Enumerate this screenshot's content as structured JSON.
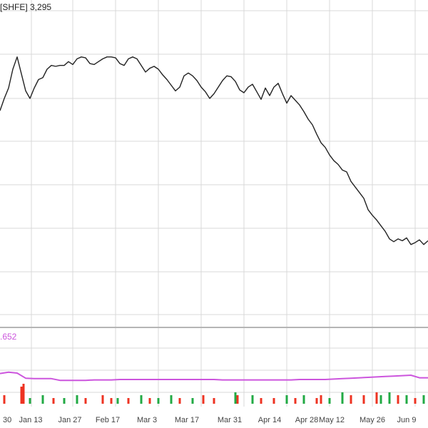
{
  "chart_data": {
    "type": "line",
    "price_title": "[SHFE] 3,295",
    "oi_label": ".652",
    "x_tick_labels": [
      "30",
      "Jan 13",
      "Jan 27",
      "Feb 17",
      "Mar 3",
      "Mar 17",
      "Mar 31",
      "Apr 14",
      "Apr 28",
      "May 12",
      "May 26",
      "Jun 9"
    ],
    "price_series": {
      "x": [
        0,
        2,
        4,
        6,
        8,
        10,
        12,
        14,
        16,
        18,
        20,
        22,
        24,
        26,
        28,
        30,
        32,
        34,
        36,
        38,
        40,
        42,
        44,
        46,
        48,
        50,
        52,
        54,
        56,
        58,
        60,
        62,
        64,
        66,
        68,
        70,
        72,
        74,
        76,
        78,
        80,
        82,
        84,
        86,
        88,
        90,
        92,
        94,
        96,
        98,
        100,
        102,
        104,
        106,
        108,
        110,
        112,
        114,
        116,
        118,
        120,
        122,
        124,
        126,
        128,
        130,
        132,
        134,
        136,
        138,
        140,
        142,
        144,
        146,
        148,
        150,
        152,
        154,
        156,
        158,
        160,
        162,
        164,
        166,
        168,
        170,
        172,
        174,
        176,
        178,
        180,
        182,
        184,
        186,
        188,
        190,
        192,
        194,
        196,
        198,
        200
      ],
      "values": [
        208,
        221,
        232,
        252,
        265,
        247,
        229,
        221,
        232,
        241,
        243,
        252,
        256,
        255,
        256,
        256,
        260,
        257,
        263,
        265,
        264,
        258,
        257,
        260,
        263,
        265,
        265,
        264,
        258,
        256,
        263,
        265,
        263,
        256,
        249,
        253,
        255,
        252,
        246,
        241,
        235,
        229,
        233,
        245,
        248,
        245,
        240,
        233,
        228,
        221,
        226,
        233,
        240,
        245,
        244,
        239,
        230,
        227,
        233,
        236,
        228,
        220,
        232,
        224,
        233,
        237,
        226,
        216,
        224,
        219,
        214,
        207,
        199,
        193,
        183,
        174,
        169,
        161,
        155,
        151,
        145,
        143,
        133,
        127,
        121,
        115,
        103,
        97,
        92,
        86,
        80,
        72,
        69,
        72,
        70,
        73,
        66,
        68,
        71,
        66,
        70
      ]
    },
    "oi_series": {
      "x": [
        0,
        4,
        8,
        12,
        16,
        20,
        24,
        28,
        32,
        36,
        40,
        44,
        48,
        52,
        56,
        60,
        64,
        68,
        72,
        76,
        80,
        84,
        88,
        92,
        96,
        100,
        104,
        108,
        112,
        116,
        120,
        124,
        128,
        132,
        136,
        140,
        144,
        148,
        152,
        156,
        160,
        164,
        168,
        172,
        176,
        180,
        184,
        188,
        192,
        196,
        200
      ],
      "values": [
        54,
        57,
        55,
        43,
        42,
        42,
        42,
        38,
        38,
        38,
        38,
        39,
        39,
        39,
        40,
        40,
        40,
        40,
        40,
        40,
        40,
        40,
        40,
        40,
        40,
        40,
        39,
        39,
        39,
        39,
        39,
        39,
        39,
        39,
        39,
        40,
        40,
        40,
        40,
        41,
        42,
        43,
        44,
        45,
        46,
        47,
        48,
        49,
        50,
        44,
        44
      ]
    },
    "volume_bars": [
      {
        "x": 2,
        "v": 3,
        "c": "red"
      },
      {
        "x": 10,
        "v": 6,
        "c": "red"
      },
      {
        "x": 11,
        "v": 7,
        "c": "red"
      },
      {
        "x": 14,
        "v": 2,
        "c": "green"
      },
      {
        "x": 20,
        "v": 3,
        "c": "green"
      },
      {
        "x": 25,
        "v": 2,
        "c": "red"
      },
      {
        "x": 30,
        "v": 2,
        "c": "green"
      },
      {
        "x": 36,
        "v": 3,
        "c": "green"
      },
      {
        "x": 40,
        "v": 2,
        "c": "red"
      },
      {
        "x": 48,
        "v": 3,
        "c": "red"
      },
      {
        "x": 52,
        "v": 2,
        "c": "red"
      },
      {
        "x": 55,
        "v": 2,
        "c": "green"
      },
      {
        "x": 60,
        "v": 2,
        "c": "red"
      },
      {
        "x": 66,
        "v": 3,
        "c": "green"
      },
      {
        "x": 70,
        "v": 2,
        "c": "red"
      },
      {
        "x": 74,
        "v": 2,
        "c": "green"
      },
      {
        "x": 80,
        "v": 3,
        "c": "green"
      },
      {
        "x": 84,
        "v": 2,
        "c": "red"
      },
      {
        "x": 90,
        "v": 2,
        "c": "green"
      },
      {
        "x": 95,
        "v": 3,
        "c": "red"
      },
      {
        "x": 100,
        "v": 2,
        "c": "red"
      },
      {
        "x": 110,
        "v": 4,
        "c": "green"
      },
      {
        "x": 111,
        "v": 3,
        "c": "red"
      },
      {
        "x": 118,
        "v": 3,
        "c": "green"
      },
      {
        "x": 122,
        "v": 2,
        "c": "red"
      },
      {
        "x": 128,
        "v": 2,
        "c": "red"
      },
      {
        "x": 134,
        "v": 3,
        "c": "green"
      },
      {
        "x": 138,
        "v": 2,
        "c": "red"
      },
      {
        "x": 142,
        "v": 3,
        "c": "green"
      },
      {
        "x": 148,
        "v": 2,
        "c": "red"
      },
      {
        "x": 150,
        "v": 3,
        "c": "red"
      },
      {
        "x": 154,
        "v": 2,
        "c": "green"
      },
      {
        "x": 160,
        "v": 4,
        "c": "green"
      },
      {
        "x": 164,
        "v": 3,
        "c": "red"
      },
      {
        "x": 170,
        "v": 3,
        "c": "red"
      },
      {
        "x": 176,
        "v": 4,
        "c": "red"
      },
      {
        "x": 178,
        "v": 3,
        "c": "green"
      },
      {
        "x": 182,
        "v": 4,
        "c": "green"
      },
      {
        "x": 186,
        "v": 3,
        "c": "red"
      },
      {
        "x": 190,
        "v": 3,
        "c": "green"
      },
      {
        "x": 194,
        "v": 2,
        "c": "red"
      },
      {
        "x": 198,
        "v": 3,
        "c": "green"
      }
    ],
    "grid": true,
    "colors": {
      "price": "#222222",
      "open_interest": "#cc55dd",
      "volume_up": "#22aa44",
      "volume_down": "#ee3322",
      "grid": "#d9d9d9",
      "divider": "#b5b5b5"
    }
  }
}
